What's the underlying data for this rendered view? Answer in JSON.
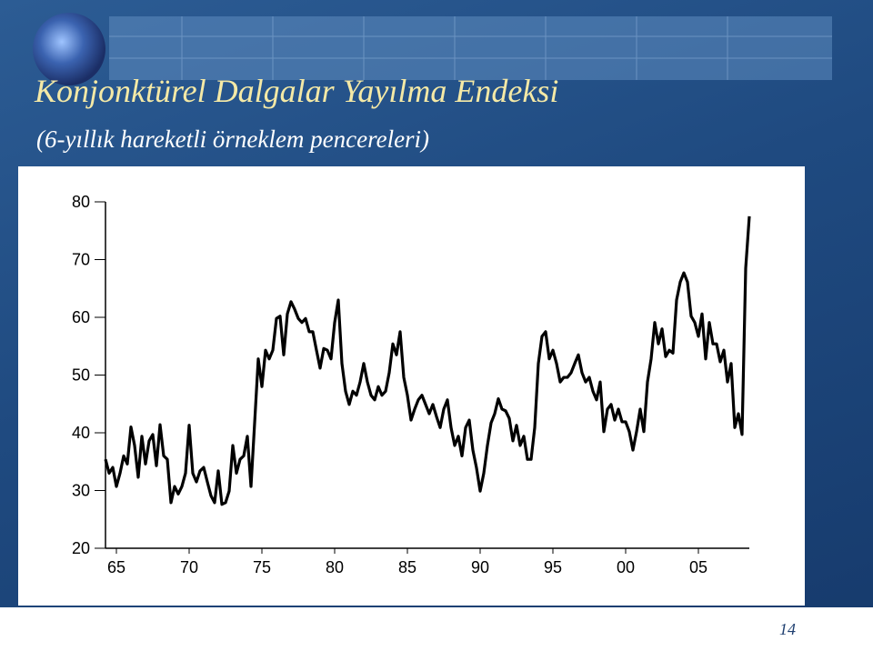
{
  "chart_data": {
    "type": "line",
    "title": "Konjonktürel Dalgalar Yayılma Endeksi",
    "subtitle": "(6-yıllık hareketli örneklem pencereleri)",
    "color": "#000000",
    "xlim": [
      1964.25,
      2008.5
    ],
    "ylim": [
      20,
      80
    ],
    "yticks": [
      20,
      30,
      40,
      50,
      60,
      70,
      80
    ],
    "xticks": [
      {
        "value": 1965,
        "label": "65"
      },
      {
        "value": 1970,
        "label": "70"
      },
      {
        "value": 1975,
        "label": "75"
      },
      {
        "value": 1980,
        "label": "80"
      },
      {
        "value": 1985,
        "label": "85"
      },
      {
        "value": 1990,
        "label": "90"
      },
      {
        "value": 1995,
        "label": "95"
      },
      {
        "value": 2000,
        "label": "00"
      },
      {
        "value": 2005,
        "label": "05"
      }
    ],
    "x": [
      1964.25,
      1964.5,
      1964.75,
      1965,
      1965.25,
      1965.5,
      1965.75,
      1966,
      1966.25,
      1966.5,
      1966.75,
      1967,
      1967.25,
      1967.5,
      1967.75,
      1968,
      1968.25,
      1968.5,
      1968.75,
      1969,
      1969.25,
      1969.5,
      1969.75,
      1970,
      1970.25,
      1970.5,
      1970.75,
      1971,
      1971.25,
      1971.5,
      1971.75,
      1972,
      1972.25,
      1972.5,
      1972.75,
      1973,
      1973.25,
      1973.5,
      1973.75,
      1974,
      1974.25,
      1974.5,
      1974.75,
      1975,
      1975.25,
      1975.5,
      1975.75,
      1976,
      1976.25,
      1976.5,
      1976.75,
      1977,
      1977.25,
      1977.5,
      1977.75,
      1978,
      1978.25,
      1978.5,
      1978.75,
      1979,
      1979.25,
      1979.5,
      1979.75,
      1980,
      1980.25,
      1980.5,
      1980.75,
      1981,
      1981.25,
      1981.5,
      1981.75,
      1982,
      1982.25,
      1982.5,
      1982.75,
      1983,
      1983.25,
      1983.5,
      1983.75,
      1984,
      1984.25,
      1984.5,
      1984.75,
      1985,
      1985.25,
      1985.5,
      1985.75,
      1986,
      1986.25,
      1986.5,
      1986.75,
      1987,
      1987.25,
      1987.5,
      1987.75,
      1988,
      1988.25,
      1988.5,
      1988.75,
      1989,
      1989.25,
      1989.5,
      1989.75,
      1990,
      1990.25,
      1990.5,
      1990.75,
      1991,
      1991.25,
      1991.5,
      1991.75,
      1992,
      1992.25,
      1992.5,
      1992.75,
      1993,
      1993.25,
      1993.5,
      1993.75,
      1994,
      1994.25,
      1994.5,
      1994.75,
      1995,
      1995.25,
      1995.5,
      1995.75,
      1996,
      1996.25,
      1996.5,
      1996.75,
      1997,
      1997.25,
      1997.5,
      1997.75,
      1998,
      1998.25,
      1998.5,
      1998.75,
      1999,
      1999.25,
      1999.5,
      1999.75,
      2000,
      2000.25,
      2000.5,
      2000.75,
      2001,
      2001.25,
      2001.5,
      2001.75,
      2002,
      2002.25,
      2002.5,
      2002.75,
      2003,
      2003.25,
      2003.5,
      2003.75,
      2004,
      2004.25,
      2004.5,
      2004.75,
      2005,
      2005.25,
      2005.5,
      2005.75,
      2006,
      2006.25,
      2006.5,
      2006.75,
      2007,
      2007.25,
      2007.5,
      2007.75,
      2008,
      2008.25,
      2008.5
    ],
    "values": [
      35.4,
      33,
      34,
      30.7,
      33,
      36,
      34.6,
      41,
      37.8,
      32.3,
      39.4,
      34.6,
      38.6,
      39.7,
      34.3,
      41.4,
      36,
      35.4,
      27.9,
      30.7,
      29.4,
      30.7,
      33,
      41.3,
      33,
      31.5,
      33.4,
      34,
      31.5,
      29.1,
      27.9,
      33.4,
      27.6,
      27.9,
      29.9,
      37.8,
      33,
      35.4,
      36,
      39.4,
      30.7,
      41.7,
      52.8,
      48,
      54.3,
      52.8,
      54.3,
      59.8,
      60.2,
      53.5,
      60.6,
      62.7,
      61.4,
      59.8,
      59.1,
      59.8,
      57.5,
      57.5,
      54.3,
      51.2,
      54.6,
      54.3,
      52.8,
      59.1,
      63,
      52,
      47.2,
      44.9,
      47.2,
      46.5,
      48.8,
      52,
      48.8,
      46.5,
      45.7,
      48,
      46.5,
      47.2,
      50.4,
      55.4,
      53.5,
      57.5,
      49.6,
      46.5,
      42.2,
      44.1,
      45.7,
      46.5,
      44.9,
      43.3,
      44.9,
      42.8,
      40.9,
      44.1,
      45.7,
      40.9,
      37.8,
      39.4,
      36,
      40.9,
      42.2,
      37,
      33.9,
      29.9,
      33,
      37.8,
      41.7,
      43.3,
      45.9,
      44.1,
      43.8,
      42.5,
      38.6,
      41.3,
      37.8,
      39.4,
      35.4,
      35.4,
      40.9,
      52,
      56.7,
      57.5,
      52.8,
      54.3,
      52,
      48.8,
      49.6,
      49.6,
      50.4,
      52,
      53.5,
      50.4,
      48.8,
      49.6,
      47.2,
      45.7,
      48.8,
      40.2,
      44.1,
      44.9,
      42.2,
      44.1,
      41.9,
      41.9,
      40.2,
      37,
      40.2,
      44.1,
      40.2,
      48.8,
      52.8,
      59.1,
      55.4,
      58,
      53.2,
      54.3,
      53.8,
      63,
      66.1,
      67.7,
      66.1,
      60.2,
      59.1,
      56.7,
      60.6,
      52.8,
      59.1,
      55.4,
      55.4,
      52.3,
      54.3,
      48.8,
      52,
      40.9,
      43.3,
      39.7,
      68.5,
      77.5
    ]
  },
  "slide_number": "14"
}
